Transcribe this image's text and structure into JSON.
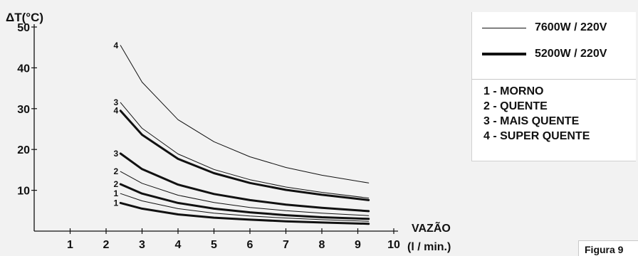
{
  "chart_data": {
    "type": "line",
    "ylabel": "ΔT(°C)",
    "xlabel_line1": "VAZÃO",
    "xlabel_line2": "(l / min.)",
    "xlim": [
      0,
      10
    ],
    "ylim": [
      0,
      50
    ],
    "xticks": [
      1,
      2,
      3,
      4,
      5,
      6,
      7,
      8,
      9,
      10
    ],
    "yticks": [
      10,
      20,
      30,
      40,
      50
    ],
    "grid": false,
    "legend": {
      "thin_label": "7600W / 220V",
      "thick_label": "5200W / 220V",
      "items": [
        "1 - MORNO",
        "2 - QUENTE",
        "3 - MAIS QUENTE",
        "4 - SUPER QUENTE"
      ]
    },
    "series": [
      {
        "label": "4",
        "power": "7600W",
        "weight": "thin",
        "x": [
          2.4,
          3,
          4,
          5,
          6,
          7,
          8,
          9.3
        ],
        "y": [
          45.5,
          36.5,
          27.3,
          21.9,
          18.2,
          15.6,
          13.7,
          11.8
        ]
      },
      {
        "label": "3",
        "power": "7600W",
        "weight": "thin",
        "x": [
          2.4,
          3,
          4,
          5,
          6,
          7,
          8,
          9.3
        ],
        "y": [
          31.5,
          25.2,
          18.9,
          15.1,
          12.6,
          10.8,
          9.5,
          8.1
        ]
      },
      {
        "label": "2",
        "power": "7600W",
        "weight": "thin",
        "x": [
          2.4,
          3,
          4,
          5,
          6,
          7,
          8,
          9.3
        ],
        "y": [
          14.6,
          11.7,
          8.8,
          7.0,
          5.8,
          5.0,
          4.4,
          3.8
        ]
      },
      {
        "label": "1",
        "power": "7600W",
        "weight": "thin",
        "x": [
          2.4,
          3,
          4,
          5,
          6,
          7,
          8,
          9.3
        ],
        "y": [
          9.2,
          7.4,
          5.5,
          4.4,
          3.7,
          3.2,
          2.8,
          2.4
        ]
      },
      {
        "label": "4",
        "power": "5200W",
        "weight": "thick",
        "x": [
          2.4,
          3,
          4,
          5,
          6,
          7,
          8,
          9.3
        ],
        "y": [
          29.5,
          23.6,
          17.7,
          14.2,
          11.8,
          10.1,
          8.9,
          7.6
        ]
      },
      {
        "label": "3",
        "power": "5200W",
        "weight": "thick",
        "x": [
          2.4,
          3,
          4,
          5,
          6,
          7,
          8,
          9.3
        ],
        "y": [
          19.0,
          15.2,
          11.4,
          9.1,
          7.6,
          6.5,
          5.7,
          4.9
        ]
      },
      {
        "label": "2",
        "power": "5200W",
        "weight": "thick",
        "x": [
          2.4,
          3,
          4,
          5,
          6,
          7,
          8,
          9.3
        ],
        "y": [
          11.5,
          9.2,
          6.9,
          5.5,
          4.6,
          3.9,
          3.4,
          3.0
        ]
      },
      {
        "label": "1",
        "power": "5200W",
        "weight": "thick",
        "x": [
          2.4,
          3,
          4,
          5,
          6,
          7,
          8,
          9.3
        ],
        "y": [
          6.9,
          5.5,
          4.1,
          3.3,
          2.8,
          2.4,
          2.1,
          1.8
        ]
      }
    ]
  },
  "figure_caption": "Figura 9"
}
